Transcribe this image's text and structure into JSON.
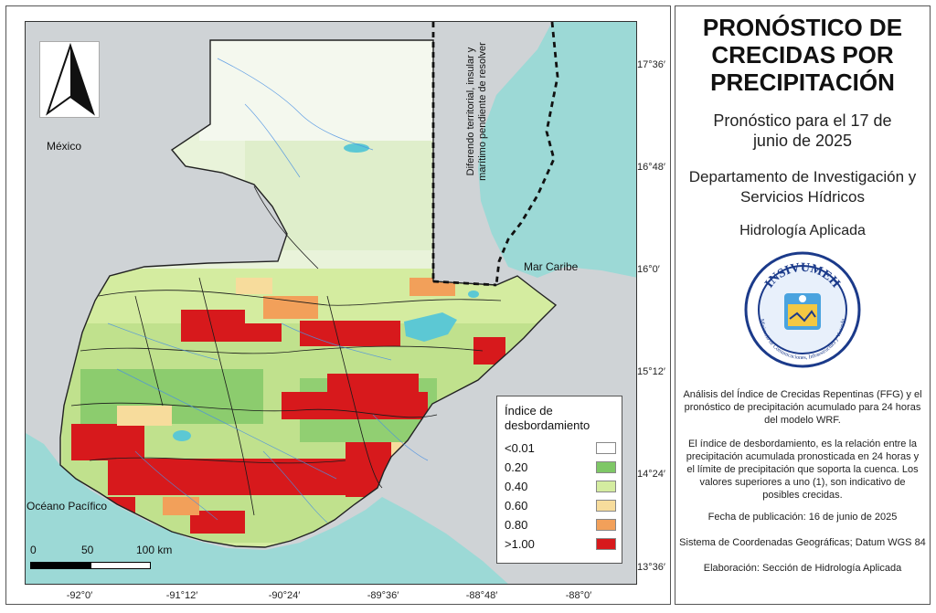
{
  "map": {
    "labels": {
      "mexico": "México",
      "mar_caribe": "Mar Caribe",
      "oceano_pacifico": "Océano Pacífico",
      "dispute": "Diferendo territorial, insular y marítimo pendiente de resolver"
    },
    "lat_ticks": [
      "17°36′",
      "16°48′",
      "16°0′",
      "15°12′",
      "14°24′",
      "13°36′"
    ],
    "lon_ticks": [
      "-92°0′",
      "-91°12′",
      "-90°24′",
      "-89°36′",
      "-88°48′",
      "-88°0′"
    ],
    "scale": {
      "zero": "0",
      "fifty": "50",
      "hundred": "100 km"
    }
  },
  "legend": {
    "title": "Índice de desbordamiento",
    "items": [
      {
        "label": "<0.01",
        "color": "#ffffff"
      },
      {
        "label": "0.20",
        "color": "#7ec766"
      },
      {
        "label": "0.40",
        "color": "#d4eca0"
      },
      {
        "label": "0.60",
        "color": "#f7dc9c"
      },
      {
        "label": "0.80",
        "color": "#f2a05a"
      },
      {
        "label": ">1.00",
        "color": "#d7191c"
      }
    ]
  },
  "panel": {
    "title": "PRONÓSTICO DE CRECIDAS POR PRECIPITACIÓN",
    "forecast_date": "Pronóstico para el 17 de junio de 2025",
    "department": "Departamento de Investigación y Servicios Hídricos",
    "area": "Hidrología Aplicada",
    "seal_text": "INSIVUMEH",
    "seal_ring_text": "Ministerio de Comunicaciones, Infraestructura y Vivienda",
    "analysis": "Análisis del Índice de Crecidas Repentinas (FFG) y el pronóstico de precipitación acumulado para 24 horas del modelo WRF.",
    "description": "El índice de desbordamiento, es la relación entre la precipitación acumulada pronosticada en 24 horas y el límite de precipitación que soporta la cuenca. Los valores superiores a uno (1), son indicativo de posibles crecidas.",
    "publication": "Fecha de publicación: 16 de junio de 2025",
    "coords": "Sistema de Coordenadas Geográficas; Datum WGS 84",
    "credit": "Elaboración: Sección de Hidrología Aplicada"
  },
  "colors": {
    "sea": "#9cd9d6",
    "land_neighbors": "#d0d3d6",
    "high": "#d7191c",
    "mid": "#f2a05a",
    "low": "#7ec766"
  }
}
